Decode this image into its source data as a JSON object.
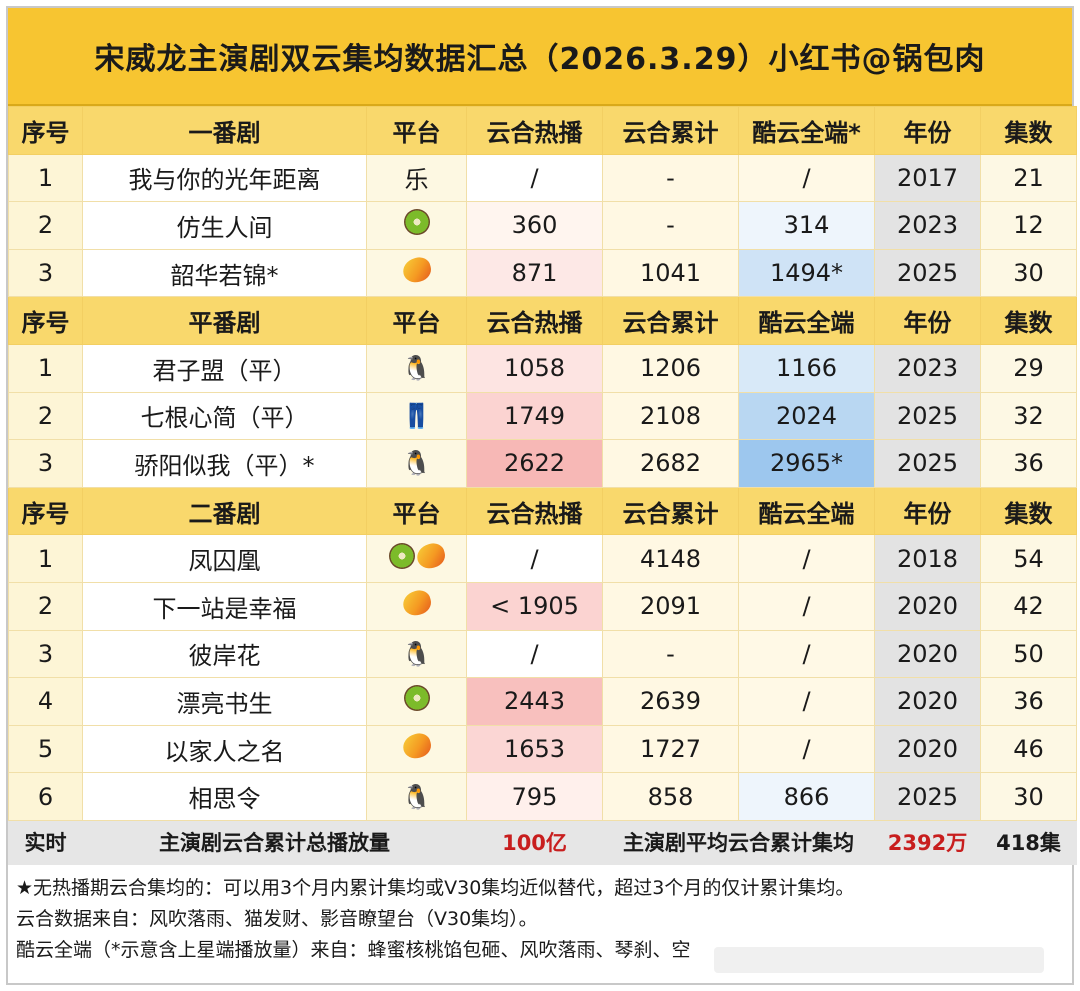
{
  "title": "宋威龙主演剧双云集均数据汇总（2026.3.29）小红书@锅包肉",
  "colors": {
    "title_bg": "#f7c531",
    "header_bg": "#f9d86c",
    "accent_red": "#c81e1e",
    "year_bg": "#e3e3e3"
  },
  "sections": [
    {
      "header": [
        "序号",
        "一番剧",
        "平台",
        "云合热播",
        "云合累计",
        "酷云全端*",
        "年份",
        "集数"
      ],
      "rows": [
        {
          "no": "1",
          "name": "我与你的光年距离",
          "platform": "乐",
          "platform_icon": "text",
          "hot": "/",
          "cum": "-",
          "ku": "/",
          "year": "2017",
          "eps": "21",
          "hot_bg": "#ffffff",
          "ku_bg": "#fff9e6"
        },
        {
          "no": "2",
          "name": "仿生人间",
          "platform": "",
          "platform_icon": "kiwi-icon",
          "hot": "360",
          "cum": "-",
          "ku": "314",
          "year": "2023",
          "eps": "12",
          "hot_bg": "#fff5ef",
          "ku_bg": "#eef5fc"
        },
        {
          "no": "3",
          "name": "韶华若锦*",
          "platform": "",
          "platform_icon": "mango-icon",
          "hot": "871",
          "cum": "1041",
          "ku": "1494*",
          "year": "2025",
          "eps": "30",
          "hot_bg": "#fde8e6",
          "ku_bg": "#cfe3f6"
        }
      ]
    },
    {
      "header": [
        "序号",
        "平番剧",
        "平台",
        "云合热播",
        "云合累计",
        "酷云全端",
        "年份",
        "集数"
      ],
      "rows": [
        {
          "no": "1",
          "name": "君子盟（平）",
          "platform": "",
          "platform_icon": "penguin-icon",
          "hot": "1058",
          "cum": "1206",
          "ku": "1166",
          "year": "2023",
          "eps": "29",
          "hot_bg": "#fde4e2",
          "ku_bg": "#d8e9f8"
        },
        {
          "no": "2",
          "name": "七根心简（平）",
          "platform": "",
          "platform_icon": "jeans-icon",
          "hot": "1749",
          "cum": "2108",
          "ku": "2024",
          "year": "2025",
          "eps": "32",
          "hot_bg": "#fbd3d1",
          "ku_bg": "#b9d7f2"
        },
        {
          "no": "3",
          "name": "骄阳似我（平）*",
          "platform": "",
          "platform_icon": "penguin-icon",
          "hot": "2622",
          "cum": "2682",
          "ku": "2965*",
          "year": "2025",
          "eps": "36",
          "hot_bg": "#f7b8b6",
          "ku_bg": "#9dc7ee"
        }
      ]
    },
    {
      "header": [
        "序号",
        "二番剧",
        "平台",
        "云合热播",
        "云合累计",
        "酷云全端",
        "年份",
        "集数"
      ],
      "rows": [
        {
          "no": "1",
          "name": "凤囚凰",
          "platform": "",
          "platform_icon": "kiwi-mango-icon",
          "hot": "/",
          "cum": "4148",
          "ku": "/",
          "year": "2018",
          "eps": "54",
          "hot_bg": "#ffffff",
          "ku_bg": "#fff9e6"
        },
        {
          "no": "2",
          "name": "下一站是幸福",
          "platform": "",
          "platform_icon": "mango-icon",
          "hot": "< 1905",
          "cum": "2091",
          "ku": "/",
          "year": "2020",
          "eps": "42",
          "hot_bg": "#fbd3d1",
          "ku_bg": "#fff9e6"
        },
        {
          "no": "3",
          "name": "彼岸花",
          "platform": "",
          "platform_icon": "penguin-icon",
          "hot": "/",
          "cum": "-",
          "ku": "/",
          "year": "2020",
          "eps": "50",
          "hot_bg": "#ffffff",
          "ku_bg": "#fff9e6"
        },
        {
          "no": "4",
          "name": "漂亮书生",
          "platform": "",
          "platform_icon": "kiwi-icon",
          "hot": "2443",
          "cum": "2639",
          "ku": "/",
          "year": "2020",
          "eps": "36",
          "hot_bg": "#f8c0be",
          "ku_bg": "#fff9e6"
        },
        {
          "no": "5",
          "name": "以家人之名",
          "platform": "",
          "platform_icon": "mango-icon",
          "hot": "1653",
          "cum": "1727",
          "ku": "/",
          "year": "2020",
          "eps": "46",
          "hot_bg": "#fbd6d4",
          "ku_bg": "#fff9e6"
        },
        {
          "no": "6",
          "name": "相思令",
          "platform": "",
          "platform_icon": "penguin-icon",
          "hot": "795",
          "cum": "858",
          "ku": "866",
          "year": "2025",
          "eps": "30",
          "hot_bg": "#fff0ec",
          "ku_bg": "#eef5fc"
        }
      ]
    }
  ],
  "summary": {
    "label": "实时",
    "total_label": "主演剧云合累计总播放量",
    "total_value": "100亿",
    "avg_label": "主演剧平均云合累计集均",
    "avg_value": "2392万",
    "eps_total": "418集"
  },
  "notes": [
    "★无热播期云合集均的：可以用3个月内累计集均或V30集均近似替代，超过3个月的仅计累计集均。",
    "云合数据来自：风吹落雨、猫发财、影音瞭望台（V30集均）。",
    "酷云全端（*示意含上星端播放量）来自：蜂蜜核桃馅包砸、风吹落雨、琴刹、空"
  ]
}
